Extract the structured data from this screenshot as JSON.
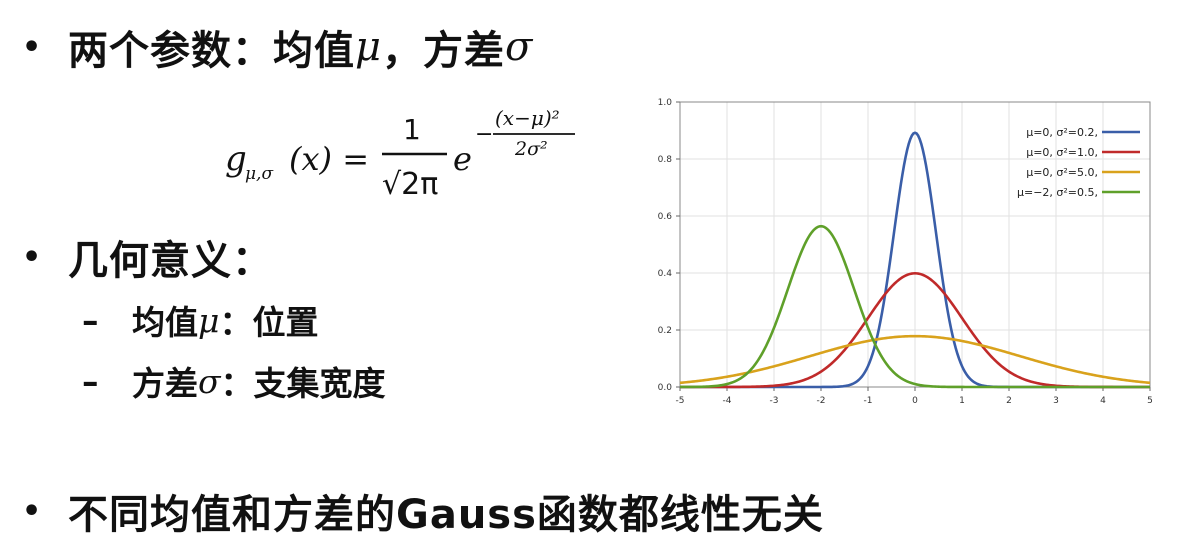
{
  "bullets": {
    "b1_text": "两个参数：均值",
    "b1_mu": "μ",
    "b1_sep": "，方差",
    "b1_sigma": "σ",
    "b2_text": "几何意义：",
    "sub1_dash": "–",
    "sub1_a": "均值",
    "sub1_mu": "μ",
    "sub1_b": "：位置",
    "sub2_dash": "–",
    "sub2_a": "方差",
    "sub2_sigma": "σ",
    "sub2_b": "：支集宽度",
    "b3_text": "不同均值和方差的Gauss函数都线性无关"
  },
  "formula": {
    "lhs_g": "g",
    "lhs_sub": "μ,σ",
    "lhs_arg": "(x) =",
    "numerator": "1",
    "denominator": "√2π",
    "base": "e",
    "exp_sign": "−",
    "exp_num": "(x−μ)²",
    "exp_den": "2σ²"
  },
  "chart_data": {
    "type": "line",
    "xlim": [
      -5,
      5
    ],
    "ylim": [
      0,
      1.0
    ],
    "xticks": [
      "-5",
      "-4",
      "-3",
      "-2",
      "-1",
      "0",
      "1",
      "2",
      "3",
      "4",
      "5"
    ],
    "yticks": [
      "0.0",
      "0.2",
      "0.4",
      "0.6",
      "0.8",
      "1.0"
    ],
    "grid": true,
    "legend_position": "top-right",
    "series": [
      {
        "name": "μ=0,   σ²=0.2,",
        "mu": 0,
        "var": 0.2,
        "color": "#3a5ea8"
      },
      {
        "name": "μ=0,   σ²=1.0,",
        "mu": 0,
        "var": 1.0,
        "color": "#c02a2a"
      },
      {
        "name": "μ=0,   σ²=5.0,",
        "mu": 0,
        "var": 5.0,
        "color": "#d9a21c"
      },
      {
        "name": "μ=−2,  σ²=0.5,",
        "mu": -2,
        "var": 0.5,
        "color": "#5fa02a"
      }
    ]
  }
}
